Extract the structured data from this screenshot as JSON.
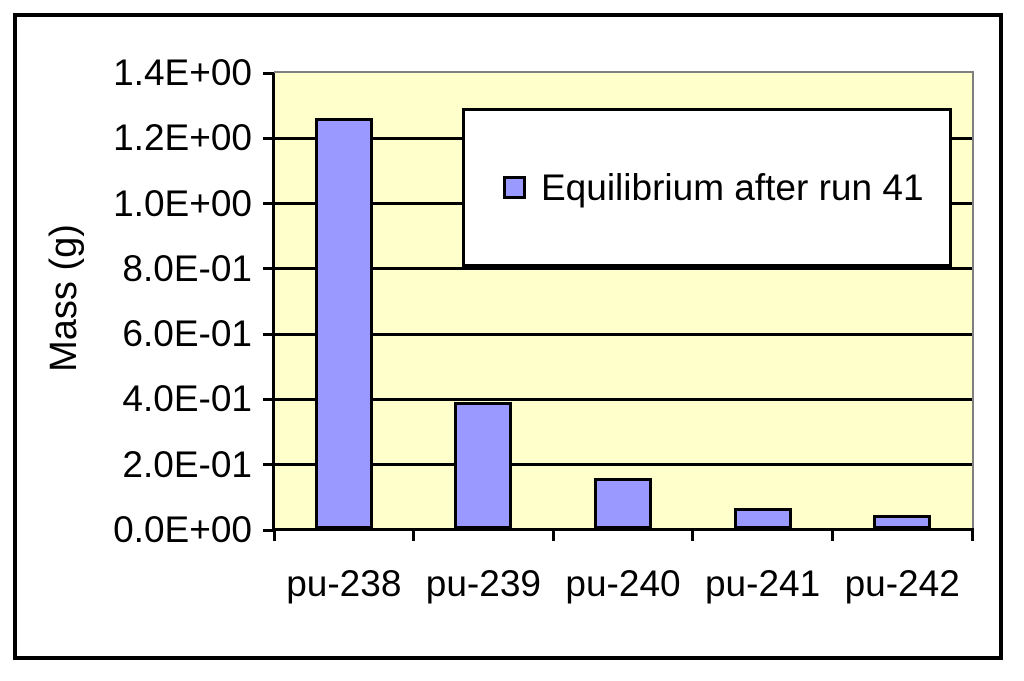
{
  "chart_data": {
    "type": "bar",
    "title": "",
    "categories": [
      "pu-238",
      "pu-239",
      "pu-240",
      "pu-241",
      "pu-242"
    ],
    "series": [
      {
        "name": "Equilibrium after run 41",
        "values": [
          1.26,
          0.39,
          0.155,
          0.065,
          0.042
        ]
      }
    ],
    "xlabel": "",
    "ylabel": "Mass (g)",
    "ylim": [
      0,
      1.4
    ],
    "ytick_step": 0.2,
    "ytick_labels": [
      "0.0E+00",
      "2.0E-01",
      "4.0E-01",
      "6.0E-01",
      "8.0E-01",
      "1.0E+00",
      "1.2E+00",
      "1.4E+00"
    ],
    "grid": true,
    "legend": {
      "label": "Equilibrium after run 41",
      "position": "inside-top-right",
      "marker": "square"
    },
    "colors": {
      "bar_fill": "#9999FF",
      "bar_border": "#000000",
      "plot_bg": "#FFFFCC",
      "gridline": "#000000",
      "axis": "#000000",
      "plot_border": "#808080",
      "frame_border": "#000000",
      "page_bg": "#FFFFFF",
      "legend_bg": "#FFFFFF",
      "text": "#000000"
    }
  }
}
